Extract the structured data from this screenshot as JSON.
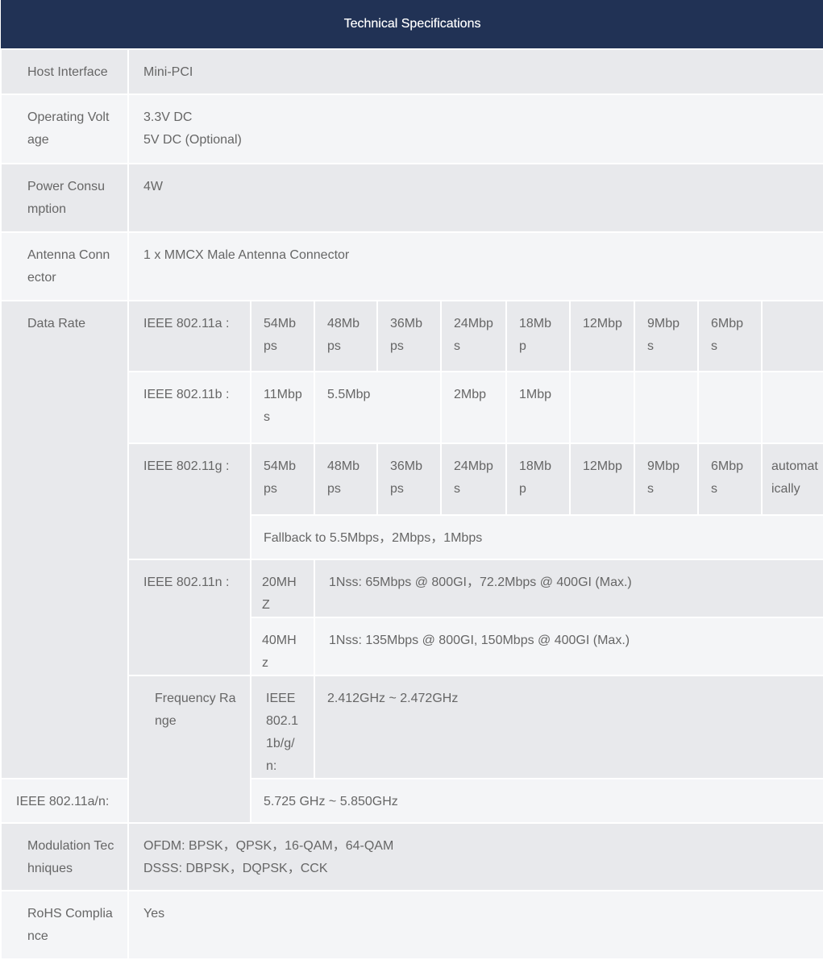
{
  "title": "Technical Specifications",
  "host_interface": {
    "label": "Host Interface",
    "value": "Mini-PCI"
  },
  "operating_voltage": {
    "label": "Operating Voltage",
    "values": [
      "3.3V DC",
      "5V DC (Optional)"
    ]
  },
  "power_consumption": {
    "label": "Power Consumption",
    "value": "4W"
  },
  "antenna_connector": {
    "label": "Antenna Connector",
    "value": "1 x MMCX Male Antenna Connector"
  },
  "data_rate": {
    "label": "Data Rate",
    "a": {
      "label": "IEEE 802.11a :",
      "rates": [
        "54Mbps",
        "48Mbps",
        "36Mbps",
        "24Mbps",
        "18Mbp",
        "12Mbp",
        "9Mbps",
        "6Mbps",
        ""
      ]
    },
    "b": {
      "label": "IEEE 802.11b :",
      "rates": [
        "11Mbps",
        "5.5Mbp",
        "2Mbp",
        "1Mbp"
      ]
    },
    "g": {
      "label": "IEEE 802.11g :",
      "rates": [
        "54Mbps",
        "48Mbps",
        "36Mbps",
        "24Mbps",
        "18Mbp",
        "12Mbp",
        "9Mbps",
        "6Mbps",
        "automatically"
      ],
      "fallback": "Fallback to 5.5Mbps，2Mbps，1Mbps"
    },
    "n": {
      "label": "IEEE 802.11n :",
      "rows": [
        {
          "bw": "20MHZ",
          "value": "1Nss: 65Mbps @ 800GI，72.2Mbps @ 400GI (Max.)"
        },
        {
          "bw": "40MHz",
          "value": "1Nss: 135Mbps @ 800GI, 150Mbps @ 400GI (Max.)"
        }
      ]
    }
  },
  "frequency_range": {
    "label": "Frequency Range",
    "rows": [
      {
        "std": "IEEE802.11b/g/n:",
        "value": "2.412GHz ~ 2.472GHz"
      },
      {
        "std": "IEEE 802.11a/n:",
        "value": "5.725 GHz ~ 5.850GHz"
      }
    ]
  },
  "modulation": {
    "label": "Modulation Techniques",
    "values": [
      "OFDM: BPSK，QPSK，16-QAM，64-QAM",
      "DSSS: DBPSK，DQPSK，CCK"
    ]
  },
  "rohs": {
    "label": "RoHS Compliance",
    "value": "Yes"
  }
}
